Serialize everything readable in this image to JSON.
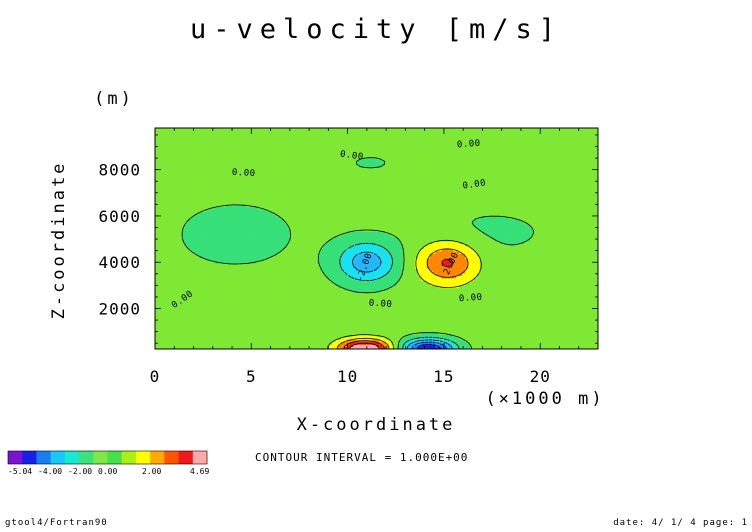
{
  "chart_data": {
    "type": "contour",
    "title": "u-velocity [m/s]",
    "xlabel": "X-coordinate",
    "x_unit": "(×1000 m)",
    "ylabel": "Z-coordinate",
    "y_unit": "(m)",
    "xlim": [
      0,
      23
    ],
    "ylim": [
      250,
      9800
    ],
    "x_ticks": [
      0,
      5,
      10,
      15,
      20
    ],
    "y_ticks": [
      2000,
      4000,
      6000,
      8000
    ],
    "contour_interval_text": "CONTOUR INTERVAL = 1.000E+00",
    "field_min": -5.04,
    "field_max": 4.69,
    "colorbar_labels": [
      "-5.04",
      "-4.00",
      "-2.00",
      "0.00",
      "2.00",
      "4.69"
    ],
    "colorbar_label_values": [
      -5.04,
      -4.0,
      -2.0,
      0.0,
      2.0,
      4.69
    ],
    "colorbar_colors": [
      "#7a12d2",
      "#1820e6",
      "#1a7df0",
      "#19c8f8",
      "#19e8d2",
      "#3ce27a",
      "#7fe646",
      "#48e048",
      "#aaf018",
      "#ffff00",
      "#ffaa00",
      "#ff5500",
      "#ee1a1a",
      "#ffaaaa"
    ],
    "contour_labels": [
      {
        "text": "0.00",
        "x": 10.2,
        "y": 8500,
        "angle": 8
      },
      {
        "text": "0.00",
        "x": 16.3,
        "y": 9000,
        "angle": -4
      },
      {
        "text": "0.00",
        "x": 4.6,
        "y": 7750,
        "angle": 3
      },
      {
        "text": "0.00",
        "x": 16.6,
        "y": 7250,
        "angle": -8
      },
      {
        "text": "0.00",
        "x": 1.5,
        "y": 2300,
        "angle": -35
      },
      {
        "text": "0.00",
        "x": 11.7,
        "y": 2100,
        "angle": 4
      },
      {
        "text": "0.00",
        "x": 16.4,
        "y": 2350,
        "angle": -4
      },
      {
        "text": "-2.00",
        "x": 11.0,
        "y": 3750,
        "angle": -70
      },
      {
        "text": "2.00",
        "x": 15.5,
        "y": 3900,
        "angle": -65
      }
    ]
  },
  "footer": {
    "left": "gtool4/Fortran90",
    "right": "date: 4/ 1/ 4 page: 1"
  }
}
